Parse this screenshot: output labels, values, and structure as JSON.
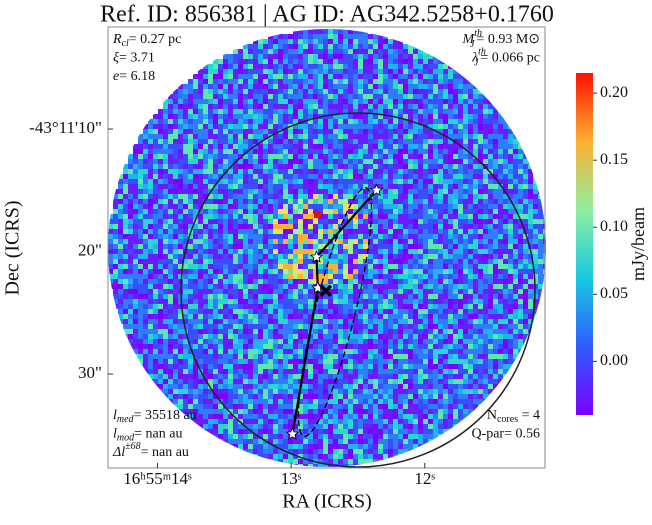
{
  "chart_data": {
    "type": "image",
    "title": "Ref. ID: 856381 | AG ID: AG342.5258+0.1760",
    "x_label": "RA (ICRS)",
    "y_label": "Dec (ICRS)",
    "xlim": [
      14.37,
      11.1
    ],
    "ylim": [
      1.67,
      37.67
    ],
    "xticks": [
      {
        "value": 14,
        "label": "16ʰ55ᵐ14ˢ"
      },
      {
        "value": 13,
        "label": "13ˢ"
      },
      {
        "value": 12,
        "label": "12ˢ"
      }
    ],
    "yticks": [
      {
        "value": 10,
        "label": "-43°11'10\""
      },
      {
        "value": 20,
        "label": "20\""
      },
      {
        "value": 30,
        "label": "30\""
      }
    ],
    "colorbar_label": "mJy/beam",
    "colorbar_lim": [
      -0.04,
      0.215
    ],
    "colorbar_ticks": [
      {
        "value": 0,
        "label": "0.00"
      },
      {
        "value": 0.05,
        "label": "0.05"
      },
      {
        "value": 0.1,
        "label": "0.10"
      },
      {
        "value": 0.15,
        "label": "0.15"
      },
      {
        "value": 0.2,
        "label": "0.20"
      }
    ],
    "cores": {
      "x": [
        12.36,
        12.81,
        12.8,
        12.99
      ],
      "y": [
        15.0,
        20.45,
        22.98,
        34.9
      ],
      "color": "#ffffff"
    },
    "centroid": {
      "x": 12.74,
      "y": 23.2,
      "color": "#000000"
    },
    "annotations_top_left": [
      {
        "sym": "R",
        "sub": "cl",
        "rest": "= 0.27 pc"
      },
      {
        "sym": "ξ",
        "rest": "= 3.71"
      },
      {
        "sym": "e",
        "rest": "= 6.18"
      }
    ],
    "annotations_top_right": [
      {
        "sym": "M",
        "sup": "th",
        "sub": "J",
        "rest": "= 0.93 M⊙"
      },
      {
        "sym": "λ",
        "sup": "th",
        "sub": "J",
        "rest": "= 0.066 pc"
      }
    ],
    "annotations_bottom_left": [
      {
        "sym": "l",
        "sub": "med",
        "rest": "= 35518 au"
      },
      {
        "sym": "l",
        "sub": "mod",
        "rest": "= nan au"
      },
      {
        "sym": "Δl",
        "sup": "±68",
        "rest": "= nan au"
      }
    ],
    "annotations_bottom_right": [
      {
        "sym": "N",
        "sub": "cores",
        "rest": " = 4",
        "plain": true
      },
      {
        "sym": "Q-par",
        "rest": "= 0.56",
        "plain": true
      }
    ]
  }
}
